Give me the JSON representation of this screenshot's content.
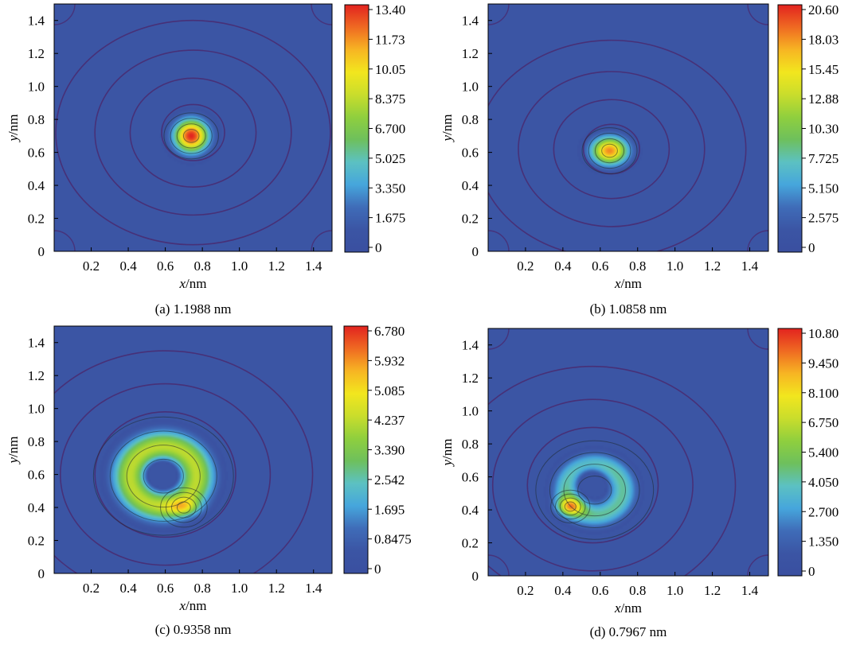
{
  "colors": {
    "background_level": "#3b55a4",
    "contour_line": "#4a2a70",
    "colormap": [
      "#3a4fa0",
      "#3b55a4",
      "#3f6cb8",
      "#46a6dc",
      "#5cc1c2",
      "#6ec05c",
      "#8fcf3e",
      "#c9dd2c",
      "#f2e61e",
      "#f7b523",
      "#ef6a22",
      "#e2231f"
    ]
  },
  "chart_data": [
    {
      "type": "heatmap",
      "caption": "(a) 1.1988 nm",
      "xlabel_var": "x",
      "xlabel_unit": "/nm",
      "ylabel_var": "y",
      "ylabel_unit": "/nm",
      "xlim": [
        0,
        1.5
      ],
      "ylim": [
        0,
        1.5
      ],
      "xticks": [
        "0.2",
        "0.4",
        "0.6",
        "0.8",
        "1.0",
        "1.2",
        "1.4"
      ],
      "yticks": [
        "0",
        "0.2",
        "0.4",
        "0.6",
        "0.8",
        "1.0",
        "1.2",
        "1.4"
      ],
      "colorbar_ticks": [
        "13.40",
        "11.73",
        "10.05",
        "8.375",
        "6.700",
        "5.025",
        "3.350",
        "1.675",
        "0"
      ],
      "colorbar_range": [
        0,
        13.4
      ],
      "peaks": [
        {
          "x": 0.74,
          "y": 0.7,
          "value": 13.4,
          "sx": 0.065,
          "sy": 0.07
        }
      ],
      "ring_radii": [
        0.17,
        0.33,
        0.5,
        0.68
      ],
      "ring_center": [
        0.75,
        0.72
      ],
      "corner_loops": true
    },
    {
      "type": "heatmap",
      "caption": "(b) 1.0858 nm",
      "xlabel_var": "x",
      "xlabel_unit": "/nm",
      "ylabel_var": "y",
      "ylabel_unit": "/nm",
      "xlim": [
        0,
        1.5
      ],
      "ylim": [
        0,
        1.5
      ],
      "xticks": [
        "0.2",
        "0.4",
        "0.6",
        "0.8",
        "1.0",
        "1.2",
        "1.4"
      ],
      "yticks": [
        "0",
        "0.2",
        "0.4",
        "0.6",
        "0.8",
        "1.0",
        "1.2",
        "1.4"
      ],
      "colorbar_ticks": [
        "20.60",
        "18.03",
        "15.45",
        "12.88",
        "10.30",
        "7.725",
        "5.150",
        "2.575",
        "0"
      ],
      "colorbar_range": [
        0,
        20.6
      ],
      "peaks": [
        {
          "x": 0.65,
          "y": 0.61,
          "value": 18.0,
          "sx": 0.07,
          "sy": 0.06
        }
      ],
      "ring_radii": [
        0.15,
        0.3,
        0.47,
        0.66
      ],
      "ring_center": [
        0.66,
        0.62
      ],
      "corner_loops": true
    },
    {
      "type": "heatmap",
      "caption": "(c) 0.9358 nm",
      "xlabel_var": "x",
      "xlabel_unit": "/nm",
      "ylabel_var": "y",
      "ylabel_unit": "/nm",
      "xlim": [
        0,
        1.5
      ],
      "ylim": [
        0,
        1.5
      ],
      "xticks": [
        "0.2",
        "0.4",
        "0.6",
        "0.8",
        "1.0",
        "1.2",
        "1.4"
      ],
      "yticks": [
        "0",
        "0.2",
        "0.4",
        "0.6",
        "0.8",
        "1.0",
        "1.2",
        "1.4"
      ],
      "colorbar_ticks": [
        "6.780",
        "5.932",
        "5.085",
        "4.237",
        "3.390",
        "2.542",
        "1.695",
        "0.8475",
        "0"
      ],
      "colorbar_range": [
        0,
        6.78
      ],
      "ring_peak": {
        "cx": 0.59,
        "cy": 0.59,
        "r": 0.18,
        "sigma": 0.07,
        "value": 4.2
      },
      "hole": {
        "x": 0.58,
        "y": 0.6,
        "s": 0.05,
        "value": 3.6
      },
      "peaks": [
        {
          "x": 0.7,
          "y": 0.4,
          "value": 1.8,
          "sx": 0.06,
          "sy": 0.035
        }
      ],
      "ring_radii": [
        0.38,
        0.55,
        0.75
      ],
      "ring_center": [
        0.6,
        0.6
      ],
      "corner_loops": false
    },
    {
      "type": "heatmap",
      "caption": "(d) 0.7967 nm",
      "xlabel_var": "x",
      "xlabel_unit": "/nm",
      "ylabel_var": "y",
      "ylabel_unit": "/nm",
      "xlim": [
        0,
        1.5
      ],
      "ylim": [
        0,
        1.5
      ],
      "xticks": [
        "0.2",
        "0.4",
        "0.6",
        "0.8",
        "1.0",
        "1.2",
        "1.4"
      ],
      "yticks": [
        "0",
        "0.2",
        "0.4",
        "0.6",
        "0.8",
        "1.0",
        "1.2",
        "1.4"
      ],
      "colorbar_ticks": [
        "10.80",
        "9.450",
        "8.100",
        "6.750",
        "5.400",
        "4.050",
        "2.700",
        "1.350",
        "0"
      ],
      "colorbar_range": [
        0,
        10.8
      ],
      "ring_peak": {
        "cx": 0.57,
        "cy": 0.52,
        "r": 0.15,
        "sigma": 0.055,
        "value": 4.3
      },
      "hole": {
        "x": 0.55,
        "y": 0.58,
        "s": 0.05,
        "value": 3.5
      },
      "peaks": [
        {
          "x": 0.44,
          "y": 0.42,
          "value": 5.5,
          "sx": 0.05,
          "sy": 0.04
        }
      ],
      "ring_radii": [
        0.35,
        0.52,
        0.72
      ],
      "ring_center": [
        0.56,
        0.55
      ],
      "corner_loops": true
    }
  ]
}
